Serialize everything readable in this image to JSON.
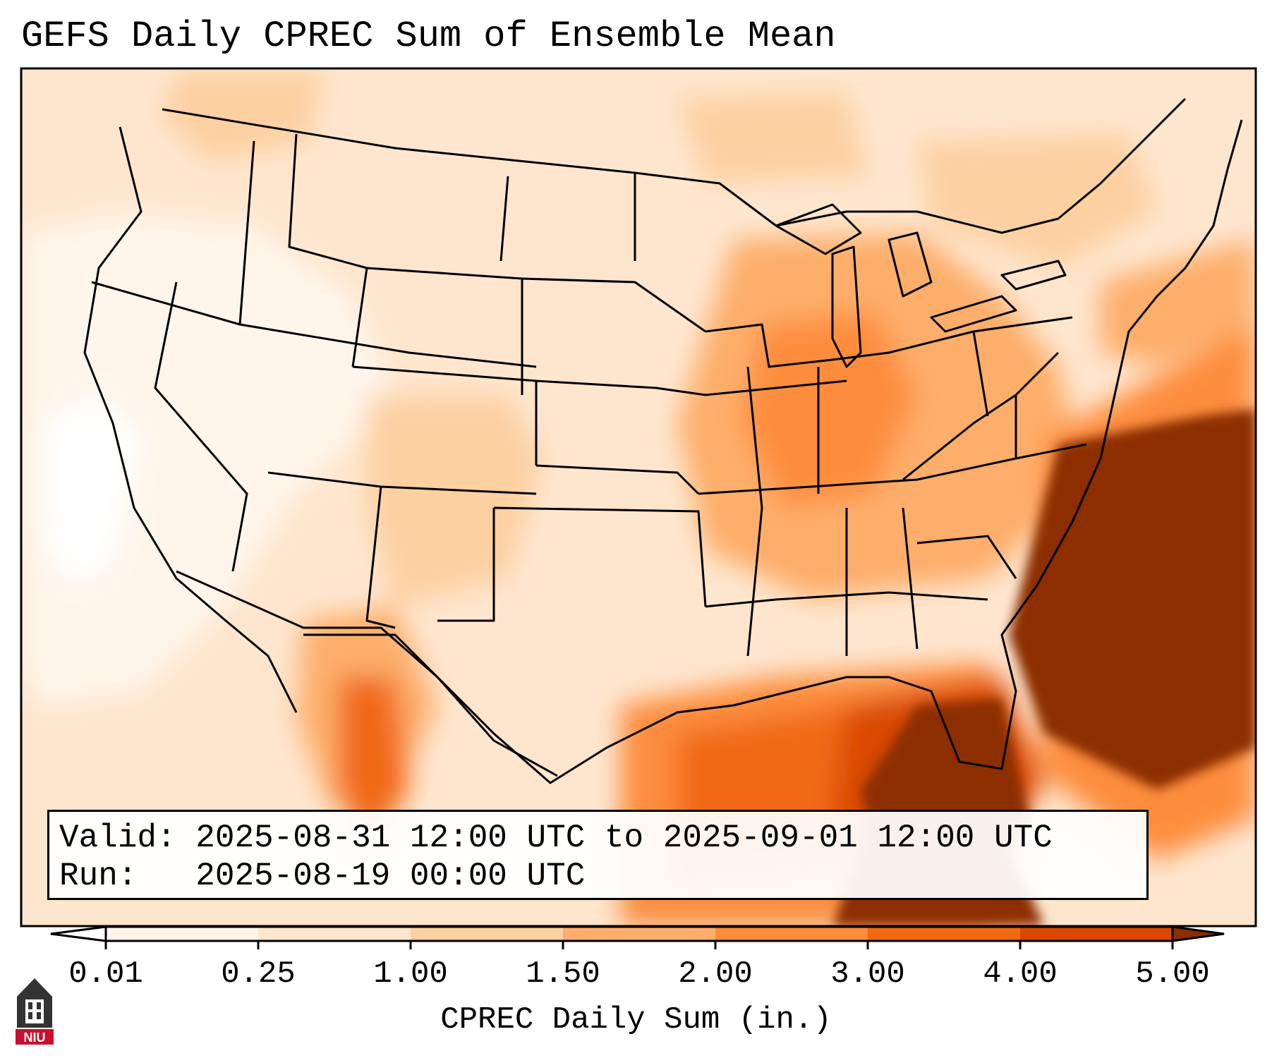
{
  "title": "GEFS Daily CPREC Sum of Ensemble Mean",
  "info": {
    "valid_line": "Valid: 2025-08-31 12:00 UTC to 2025-09-01 12:00 UTC",
    "run_line": "Run:   2025-08-19 00:00 UTC"
  },
  "colorbar": {
    "label": "CPREC Daily Sum (in.)",
    "ticks": [
      "0.01",
      "0.25",
      "1.00",
      "1.50",
      "2.00",
      "3.00",
      "4.00",
      "5.00"
    ],
    "colors": [
      "#fff5eb",
      "#fee6ce",
      "#fdd0a2",
      "#fdae6b",
      "#fd8d3c",
      "#f16913",
      "#d94801",
      "#8c2d04"
    ],
    "under_color": "#ffffff",
    "extend": "both"
  },
  "logo": {
    "text": "NIU",
    "colors": {
      "tower": "#333333",
      "banner": "#c8102e"
    }
  },
  "map": {
    "region": "Continental United States",
    "water_color": "#ffffff",
    "boundary_color": "#000000"
  }
}
